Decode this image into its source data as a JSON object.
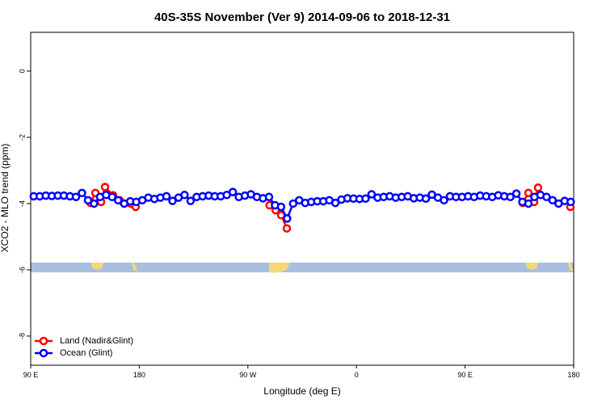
{
  "chart_data": {
    "type": "line",
    "title": "40S-35S November (Ver 9)   2014-09-06 to 2018-12-31",
    "x_label": "Longitude (deg E)",
    "y_label": "XCO2 - MLO trend (ppm)",
    "xlim": [
      90,
      540
    ],
    "ylim": [
      -8.88,
      1.17
    ],
    "xticks": [
      {
        "value": 90,
        "label": "90 E"
      },
      180,
      {
        "value": 270,
        "label": "90 W"
      },
      {
        "value": 360,
        "label": "0"
      },
      {
        "value": 450,
        "label": "90 E"
      },
      {
        "value": 540,
        "label": "180"
      }
    ],
    "yticks": [
      0,
      -2,
      -4,
      -6,
      -8
    ],
    "legend": "bottom-left",
    "series": [
      {
        "name": "Land (Nadir&Glint)",
        "color": "#ff0000",
        "x": [
          139.6,
          143.6,
          148.3,
          151.6,
          158.3,
          163.7,
          173,
          177,
          null,
          288,
          293,
          297.6,
          302.3,
          null,
          497.8,
          502.5,
          507.2,
          510.5,
          null,
          537.3
        ],
        "values": [
          -3.98,
          -3.68,
          -3.95,
          -3.5,
          -3.75,
          -3.9,
          -4.0,
          -4.1,
          null,
          -4.05,
          -4.2,
          -4.35,
          -4.75,
          null,
          -3.98,
          -3.68,
          -3.95,
          -3.52,
          null,
          -4.1
        ]
      },
      {
        "name": "Ocean (Glint)",
        "color": "#0000ff",
        "x": [
          92.5,
          97.5,
          102.5,
          107.5,
          112.5,
          117.5,
          122.5,
          127.5,
          132.5,
          137.5,
          142.5,
          147.5,
          152.5,
          157.5,
          162.5,
          167.5,
          172.5,
          177.5,
          182.5,
          187.5,
          192.5,
          197.5,
          202.5,
          207.5,
          212.5,
          217.5,
          222.5,
          227.5,
          232.5,
          237.5,
          242.5,
          247.5,
          252.5,
          257.5,
          262.5,
          267.5,
          272.5,
          277.5,
          282.5,
          287.5,
          292.5,
          297.5,
          302.5,
          307.5,
          312.5,
          317.5,
          322.5,
          327.5,
          332.5,
          337.5,
          342.5,
          347.5,
          352.5,
          357.5,
          362.5,
          367.5,
          372.5,
          377.5,
          382.5,
          387.5,
          392.5,
          397.5,
          402.5,
          407.5,
          412.5,
          417.5,
          422.5,
          427.5,
          432.5,
          437.5,
          442.5,
          447.5,
          452.5,
          457.5,
          462.5,
          467.5,
          472.5,
          477.5,
          482.5,
          487.5,
          492.5,
          497.5,
          502.5,
          507.5,
          512.5,
          517.5,
          522.5,
          527.5,
          532.5,
          537.5
        ],
        "values": [
          -3.78,
          -3.78,
          -3.76,
          -3.77,
          -3.76,
          -3.76,
          -3.78,
          -3.8,
          -3.68,
          -3.9,
          -4.0,
          -3.8,
          -3.74,
          -3.8,
          -3.9,
          -4.0,
          -3.93,
          -3.95,
          -3.9,
          -3.82,
          -3.86,
          -3.82,
          -3.78,
          -3.92,
          -3.82,
          -3.74,
          -3.92,
          -3.8,
          -3.78,
          -3.76,
          -3.78,
          -3.78,
          -3.74,
          -3.65,
          -3.8,
          -3.76,
          -3.72,
          -3.8,
          -3.84,
          -3.8,
          -4.05,
          -4.1,
          -4.45,
          -4.0,
          -3.9,
          -3.98,
          -3.95,
          -3.93,
          -3.93,
          -3.9,
          -3.98,
          -3.88,
          -3.84,
          -3.85,
          -3.86,
          -3.85,
          -3.72,
          -3.82,
          -3.8,
          -3.78,
          -3.82,
          -3.8,
          -3.78,
          -3.84,
          -3.82,
          -3.85,
          -3.73,
          -3.82,
          -3.9,
          -3.78,
          -3.8,
          -3.8,
          -3.78,
          -3.8,
          -3.76,
          -3.78,
          -3.8,
          -3.75,
          -3.78,
          -3.8,
          -3.7,
          -3.95,
          -4.0,
          -3.8,
          -3.74,
          -3.8,
          -3.9,
          -4.0,
          -3.92,
          -3.95
        ]
      }
    ]
  }
}
